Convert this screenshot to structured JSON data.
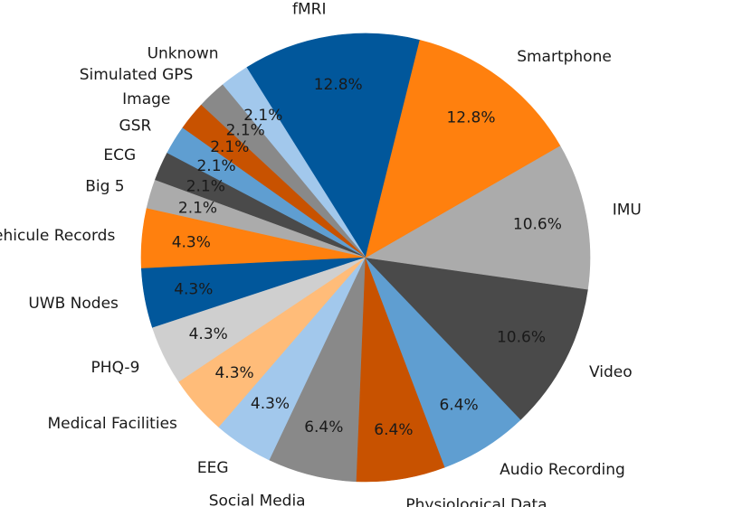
{
  "chart_data": {
    "type": "pie",
    "title": "",
    "slices": [
      {
        "label": "fMRI",
        "value": 12.8,
        "pct_label": "12.8%",
        "color": "#01579b"
      },
      {
        "label": "Unknown",
        "value": 2.1,
        "pct_label": "2.1%",
        "color": "#a2c8ec"
      },
      {
        "label": "Simulated GPS",
        "value": 2.1,
        "pct_label": "2.1%",
        "color": "#898989"
      },
      {
        "label": "Image",
        "value": 2.1,
        "pct_label": "2.1%",
        "color": "#c85200"
      },
      {
        "label": "GSR",
        "value": 2.1,
        "pct_label": "2.1%",
        "color": "#5f9ed1"
      },
      {
        "label": "ECG",
        "value": 2.1,
        "pct_label": "2.1%",
        "color": "#4a4a4a"
      },
      {
        "label": "Big 5",
        "value": 2.1,
        "pct_label": "2.1%",
        "color": "#ababab"
      },
      {
        "label": "Vehicule Records",
        "value": 4.3,
        "pct_label": "4.3%",
        "color": "#ff800e"
      },
      {
        "label": "UWB Nodes",
        "value": 4.3,
        "pct_label": "4.3%",
        "color": "#01579b"
      },
      {
        "label": "PHQ-9",
        "value": 4.3,
        "pct_label": "4.3%",
        "color": "#cfcfcf"
      },
      {
        "label": "Medical Facilities",
        "value": 4.3,
        "pct_label": "4.3%",
        "color": "#ffbc79"
      },
      {
        "label": "EEG",
        "value": 4.3,
        "pct_label": "4.3%",
        "color": "#a2c8ec"
      },
      {
        "label": "Social Media",
        "value": 6.4,
        "pct_label": "6.4%",
        "color": "#898989"
      },
      {
        "label": "Physiological Data",
        "value": 6.4,
        "pct_label": "6.4%",
        "color": "#c85200"
      },
      {
        "label": "Audio Recording",
        "value": 6.4,
        "pct_label": "6.4%",
        "color": "#5f9ed1"
      },
      {
        "label": "Video",
        "value": 10.6,
        "pct_label": "10.6%",
        "color": "#4a4a4a"
      },
      {
        "label": "IMU",
        "value": 10.6,
        "pct_label": "10.6%",
        "color": "#ababab"
      },
      {
        "label": "Smartphone",
        "value": 12.8,
        "pct_label": "12.8%",
        "color": "#ff800e"
      }
    ]
  }
}
